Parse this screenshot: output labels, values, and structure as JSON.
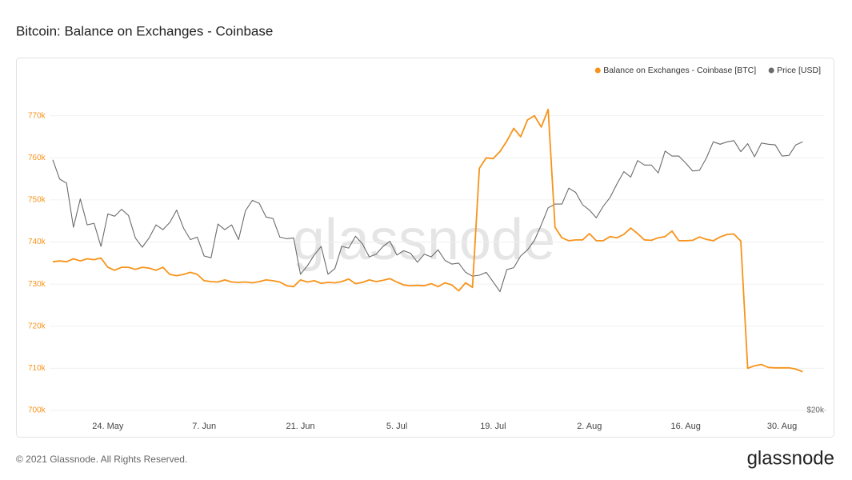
{
  "chart_data": {
    "type": "line",
    "title": "Bitcoin: Balance on Exchanges - Coinbase",
    "watermark": "glassnode",
    "footer": "© 2021 Glassnode. All Rights Reserved.",
    "brand": "glassnode",
    "categories": [
      null,
      null,
      null,
      null,
      null,
      null,
      null,
      null,
      "24. May",
      null,
      null,
      null,
      null,
      null,
      null,
      null,
      null,
      null,
      null,
      null,
      null,
      null,
      "7. Jun",
      null,
      null,
      null,
      null,
      null,
      null,
      null,
      null,
      null,
      null,
      null,
      null,
      null,
      "21. Jun",
      null,
      null,
      null,
      null,
      null,
      null,
      null,
      null,
      null,
      null,
      null,
      null,
      null,
      "5. Jul",
      null,
      null,
      null,
      null,
      null,
      null,
      null,
      null,
      null,
      null,
      null,
      null,
      null,
      "19. Jul",
      null,
      null,
      null,
      null,
      null,
      null,
      null,
      null,
      null,
      null,
      null,
      null,
      null,
      "2. Aug",
      null,
      null,
      null,
      null,
      null,
      null,
      null,
      null,
      null,
      null,
      null,
      null,
      null,
      "16. Aug",
      null,
      null,
      null,
      null,
      null,
      null,
      null,
      null,
      null,
      null,
      null,
      null,
      null,
      "30. Aug",
      null,
      null,
      null
    ],
    "series": [
      {
        "name": "Balance on Exchanges - Coinbase [BTC]",
        "color": "#f7931a",
        "values": [
          735300,
          735500,
          735300,
          736000,
          735500,
          736000,
          735800,
          736200,
          734000,
          733300,
          734000,
          734000,
          733500,
          734000,
          733800,
          733300,
          734000,
          732300,
          732000,
          732300,
          732800,
          732300,
          730800,
          730600,
          730500,
          731000,
          730500,
          730400,
          730500,
          730300,
          730600,
          731000,
          730800,
          730500,
          729600,
          729400,
          731000,
          730500,
          730800,
          730200,
          730400,
          730300,
          730600,
          731200,
          730100,
          730400,
          731000,
          730600,
          730900,
          731300,
          730500,
          729800,
          729600,
          729700,
          729600,
          730100,
          729400,
          730300,
          729800,
          728400,
          730300,
          729200,
          757500,
          760000,
          759800,
          761500,
          764000,
          767000,
          765000,
          769000,
          770000,
          767300,
          771500,
          743500,
          741000,
          740300,
          740500,
          740500,
          742000,
          740300,
          740300,
          741300,
          741000,
          741800,
          743300,
          742000,
          740500,
          740400,
          741000,
          741300,
          742600,
          740300,
          740300,
          740400,
          741200,
          740600,
          740300,
          741200,
          741800,
          741900,
          740200,
          710000,
          710600,
          710900,
          710200,
          710100,
          710100,
          710100,
          709800,
          709200
        ]
      },
      {
        "name": "Price [USD]",
        "color": "#6b6b6b",
        "axis": "y2",
        "values": [
          46400,
          43500,
          42900,
          37000,
          40700,
          37300,
          37500,
          34700,
          38700,
          38400,
          39300,
          38500,
          35700,
          34600,
          35700,
          37300,
          36700,
          37600,
          39200,
          36900,
          35500,
          35800,
          33600,
          33400,
          37400,
          36700,
          37300,
          35500,
          39100,
          40500,
          40100,
          38300,
          38100,
          35800,
          35600,
          35700,
          31600,
          32500,
          33700,
          34700,
          31600,
          32200,
          34700,
          34500,
          35900,
          35000,
          33500,
          33800,
          34700,
          35300,
          33700,
          34200,
          33900,
          32900,
          33800,
          33500,
          34300,
          33100,
          32700,
          32800,
          31800,
          31400,
          31500,
          31800,
          30800,
          29800,
          32100,
          32300,
          33600,
          34300,
          35400,
          37300,
          39500,
          40000,
          40000,
          42200,
          41600,
          39900,
          39200,
          38200,
          39700,
          40900,
          42800,
          44600,
          43800,
          46300,
          45600,
          45600,
          44400,
          47800,
          47000,
          47000,
          45900,
          44700,
          44800,
          46700,
          49300,
          48900,
          49300,
          49500,
          47700,
          49000,
          46900,
          49100,
          48900,
          48800,
          47000,
          47100,
          48800,
          49300
        ]
      }
    ],
    "ylim": [
      700000,
      780000
    ],
    "yticks": [
      {
        "value": 700000,
        "label": "700k"
      },
      {
        "value": 710000,
        "label": "710k"
      },
      {
        "value": 720000,
        "label": "720k"
      },
      {
        "value": 730000,
        "label": "730k"
      },
      {
        "value": 740000,
        "label": "740k"
      },
      {
        "value": 750000,
        "label": "750k"
      },
      {
        "value": 760000,
        "label": "760k"
      },
      {
        "value": 770000,
        "label": "770k"
      }
    ],
    "y2lim": [
      20000,
      62000
    ],
    "y2log": true,
    "y2ticks": [
      {
        "value": 20000,
        "label": "$20k"
      }
    ],
    "grid": true,
    "legend_position": "top-right"
  }
}
